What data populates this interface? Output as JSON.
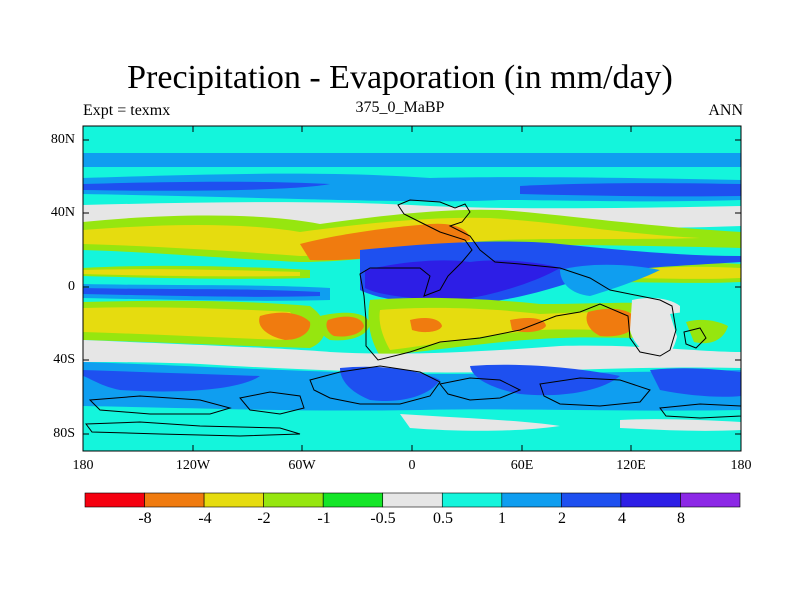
{
  "title": "Precipitation - Evaporation (in mm/day)",
  "subtitle_left": "Expt = texmx",
  "subtitle_center": "375_0_MaBP",
  "subtitle_right": "ANN",
  "axes": {
    "lat_labels": [
      "80N",
      "40N",
      "0",
      "40S",
      "80S"
    ],
    "lon_labels": [
      "180",
      "120W",
      "60W",
      "0",
      "60E",
      "120E",
      "180"
    ]
  },
  "colorbar": {
    "colors": [
      "#f5000f",
      "#f07b0f",
      "#e6dc0f",
      "#96e60f",
      "#14e628",
      "#e6e6e6",
      "#14f5dc",
      "#0f9ef0",
      "#1e50f0",
      "#2d1ee6",
      "#8c28e6"
    ],
    "labels": [
      "-8",
      "-4",
      "-2",
      "-1",
      "-0.5",
      "0.5",
      "1",
      "2",
      "4",
      "8"
    ]
  }
}
